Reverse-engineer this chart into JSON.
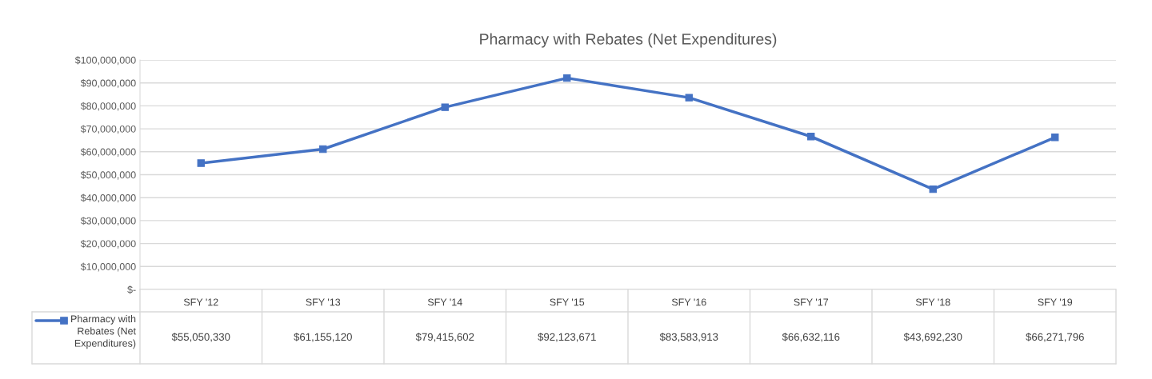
{
  "chart_data": {
    "type": "line",
    "title": "Pharmacy with Rebates (Net Expenditures)",
    "categories": [
      "SFY '12",
      "SFY '13",
      "SFY '14",
      "SFY '15",
      "SFY '16",
      "SFY '17",
      "SFY '18",
      "SFY '19"
    ],
    "series": [
      {
        "name": "Pharmacy with Rebates (Net Expenditures)",
        "color": "#4472c4",
        "values": [
          55050330,
          61155120,
          79415602,
          92123671,
          83583913,
          66632116,
          43692230,
          66271796
        ],
        "value_labels": [
          "$55,050,330",
          "$61,155,120",
          "$79,415,602",
          "$92,123,671",
          "$83,583,913",
          "$66,632,116",
          "$43,692,230",
          "$66,271,796"
        ]
      }
    ],
    "ylim": [
      0,
      100000000
    ],
    "yticks": [
      {
        "value": 0,
        "label": "$-"
      },
      {
        "value": 10000000,
        "label": "$10,000,000"
      },
      {
        "value": 20000000,
        "label": "$20,000,000"
      },
      {
        "value": 30000000,
        "label": "$30,000,000"
      },
      {
        "value": 40000000,
        "label": "$40,000,000"
      },
      {
        "value": 50000000,
        "label": "$50,000,000"
      },
      {
        "value": 60000000,
        "label": "$60,000,000"
      },
      {
        "value": 70000000,
        "label": "$70,000,000"
      },
      {
        "value": 80000000,
        "label": "$80,000,000"
      },
      {
        "value": 90000000,
        "label": "$90,000,000"
      },
      {
        "value": 100000000,
        "label": "$100,000,000"
      }
    ],
    "grid": "y",
    "marker": "square",
    "line_style": "solid",
    "legend": "bottom left"
  }
}
